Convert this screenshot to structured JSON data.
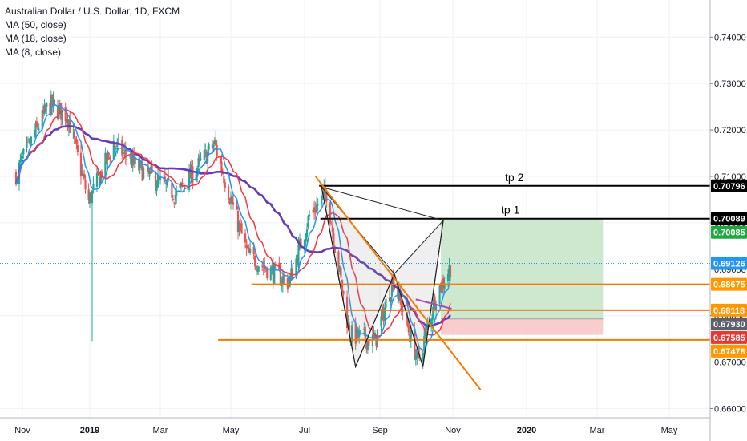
{
  "header": {
    "title": "Australian Dollar / U.S. Dollar, 1D, FXCM",
    "indicators": [
      "MA (50, close)",
      "MA (18, close)",
      "MA (8, close)"
    ]
  },
  "colors": {
    "up": "#26a69a",
    "down": "#ef5350",
    "ma50": "#673ab7",
    "ma18": "#f23645",
    "ma8": "#2196f3",
    "pattern": "#f57c00",
    "target": "#000000",
    "profit_zone": "#c8e6c9",
    "loss_zone": "#f8c8c8",
    "current_price_line": "#2196f3"
  },
  "chart_data": {
    "type": "candlestick",
    "instrument": "Australian Dollar / U.S. Dollar",
    "timeframe": "1D",
    "ylim": [
      0.658,
      0.748
    ],
    "y_ticks": [
      "0.74000",
      "0.73000",
      "0.72000",
      "0.71000",
      "0.70000",
      "0.69000",
      "0.68000",
      "0.67000",
      "0.66000"
    ],
    "x_ticks": [
      "Nov",
      "2019",
      "Mar",
      "May",
      "Jul",
      "Sep",
      "Nov",
      "2020",
      "Mar",
      "May"
    ],
    "grid": true,
    "price_path_anchors": [
      {
        "date": "2018-10-26",
        "close": 0.7105
      },
      {
        "date": "2018-11-25",
        "close": 0.7255
      },
      {
        "date": "2018-12-12",
        "close": 0.723
      },
      {
        "date": "2018-12-31",
        "close": 0.7045
      },
      {
        "date": "2019-01-21",
        "close": 0.717
      },
      {
        "date": "2019-02-10",
        "close": 0.712
      },
      {
        "date": "2019-03-15",
        "close": 0.706
      },
      {
        "date": "2019-04-17",
        "close": 0.717
      },
      {
        "date": "2019-05-15",
        "close": 0.693
      },
      {
        "date": "2019-06-18",
        "close": 0.687
      },
      {
        "date": "2019-07-05",
        "close": 0.7015
      },
      {
        "date": "2019-07-19",
        "close": 0.7065
      },
      {
        "date": "2019-08-07",
        "close": 0.676
      },
      {
        "date": "2019-08-28",
        "close": 0.6745
      },
      {
        "date": "2019-09-12",
        "close": 0.688
      },
      {
        "date": "2019-10-03",
        "close": 0.67
      },
      {
        "date": "2019-10-18",
        "close": 0.6845
      },
      {
        "date": "2019-10-30",
        "close": 0.6905
      }
    ],
    "moving_averages": [
      "MA (50, close)",
      "MA (18, close)",
      "MA (8, close)"
    ],
    "target_lines": [
      {
        "label": "tp 2",
        "price": "0.70796"
      },
      {
        "label": "tp  1",
        "price": "0.70089"
      }
    ],
    "support_lines": [
      {
        "price": "0.68675"
      },
      {
        "price": "0.68118"
      },
      {
        "price": "0.67478"
      }
    ],
    "price_badges": [
      {
        "price": "0.70796",
        "kind": "target"
      },
      {
        "price": "0.70089",
        "kind": "target"
      },
      {
        "price": "0.70085",
        "kind": "profit"
      },
      {
        "price": "0.69126",
        "kind": "current"
      },
      {
        "price": "0.68675",
        "kind": "support"
      },
      {
        "price": "0.68118",
        "kind": "support"
      },
      {
        "price": "0.67930",
        "kind": "entry"
      },
      {
        "price": "0.67585",
        "kind": "stop"
      },
      {
        "price": "0.67478",
        "kind": "support"
      }
    ],
    "position": {
      "entry": 0.6793,
      "target": 0.70085,
      "stop": 0.67585,
      "start": "2019-10-22",
      "end": "2020-03-06"
    },
    "harmonic_pattern": [
      {
        "date": "2019-07-15",
        "price": 0.7077
      },
      {
        "date": "2019-08-12",
        "price": 0.669
      },
      {
        "date": "2019-09-13",
        "price": 0.689
      },
      {
        "date": "2019-10-07",
        "price": 0.669
      },
      {
        "date": "2019-10-24",
        "price": 0.7005
      }
    ],
    "trend_lines": [
      {
        "from": {
          "date": "2019-07-10",
          "price": 0.71
        },
        "to": {
          "date": "2019-11-24",
          "price": 0.664
        }
      },
      {
        "from": {
          "date": "2019-10-01",
          "price": 0.6835
        },
        "to": {
          "date": "2019-10-31",
          "price": 0.6815
        }
      }
    ]
  }
}
